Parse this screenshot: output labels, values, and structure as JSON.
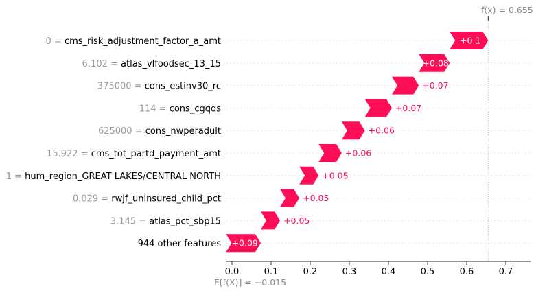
{
  "chart_data": {
    "type": "waterfall",
    "features": [
      {
        "value": "0",
        "name": "cms_risk_adjustment_factor_a_amt",
        "shap": 0.1,
        "label": "+0.1"
      },
      {
        "value": "6.102",
        "name": "atlas_vlfoodsec_13_15",
        "shap": 0.08,
        "label": "+0.08"
      },
      {
        "value": "375000",
        "name": "cons_estinv30_rc",
        "shap": 0.07,
        "label": "+0.07"
      },
      {
        "value": "114",
        "name": "cons_cgqqs",
        "shap": 0.07,
        "label": "+0.07"
      },
      {
        "value": "625000",
        "name": "cons_nwperadult",
        "shap": 0.06,
        "label": "+0.06"
      },
      {
        "value": "15.922",
        "name": "cms_tot_partd_payment_amt",
        "shap": 0.06,
        "label": "+0.06"
      },
      {
        "value": "1",
        "name": "hum_region_GREAT LAKES/CENTRAL NORTH",
        "shap": 0.05,
        "label": "+0.05"
      },
      {
        "value": "0.029",
        "name": "rwjf_uninsured_child_pct",
        "shap": 0.05,
        "label": "+0.05"
      },
      {
        "value": "3.145",
        "name": "atlas_pct_sbp15",
        "shap": 0.05,
        "label": "+0.05"
      },
      {
        "value": "",
        "name": "944 other features",
        "shap": 0.09,
        "label": "+0.09"
      }
    ],
    "base_value": -0.015,
    "base_label": "E[f(X)] = −0.015",
    "fx_value": 0.655,
    "fx_label": "f(x) = 0.655",
    "x_ticks": [
      "0.0",
      "0.1",
      "0.2",
      "0.3",
      "0.4",
      "0.5",
      "0.6",
      "0.7"
    ],
    "x_tick_values": [
      0.0,
      0.1,
      0.2,
      0.3,
      0.4,
      0.5,
      0.6,
      0.7
    ],
    "xlim": [
      -0.015,
      0.76
    ],
    "colors": {
      "positive": "#ff0d57",
      "grid": "#cccccc",
      "axis": "#333333"
    }
  }
}
